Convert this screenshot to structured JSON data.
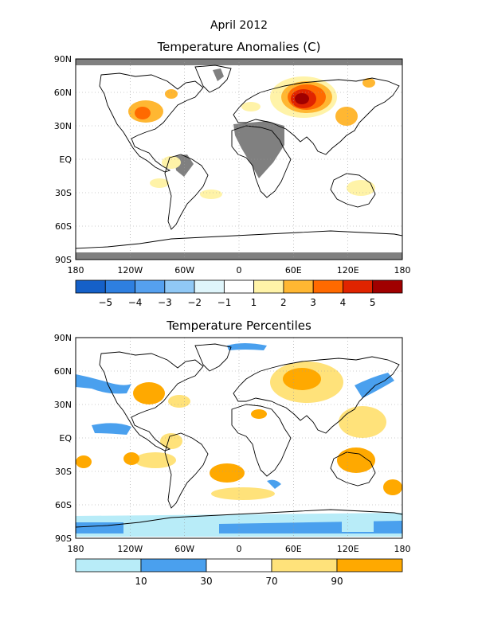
{
  "title": "April 2012",
  "panel1": {
    "title": "Temperature Anomalies (C)",
    "lat_labels": [
      "90N",
      "60N",
      "30N",
      "EQ",
      "30S",
      "60S",
      "90S"
    ],
    "lon_labels": [
      "180",
      "120W",
      "60W",
      "0",
      "60E",
      "120E",
      "180"
    ],
    "colorbar": {
      "labels": [
        "−5",
        "−4",
        "−3",
        "−2",
        "−1",
        "1",
        "2",
        "3",
        "4",
        "5"
      ],
      "colors": [
        "#1560c8",
        "#2e7fe0",
        "#55a0ef",
        "#90c8f5",
        "#dff5fb",
        "#ffffff",
        "#fff3a8",
        "#ffb732",
        "#ff6a00",
        "#e02400",
        "#a00000"
      ]
    }
  },
  "panel2": {
    "title": "Temperature Percentiles",
    "lat_labels": [
      "90N",
      "60N",
      "30N",
      "EQ",
      "30S",
      "60S",
      "90S"
    ],
    "lon_labels": [
      "180",
      "120W",
      "60W",
      "0",
      "60E",
      "120E",
      "180"
    ],
    "colorbar": {
      "labels": [
        "10",
        "30",
        "70",
        "90"
      ],
      "colors": [
        "#b8ecf8",
        "#4aa0ee",
        "#ffffff",
        "#ffe27a",
        "#ffa900"
      ]
    }
  },
  "colors": {
    "missing": "#808080",
    "land_outline": "#000000",
    "grid": "#9a9a9a"
  }
}
